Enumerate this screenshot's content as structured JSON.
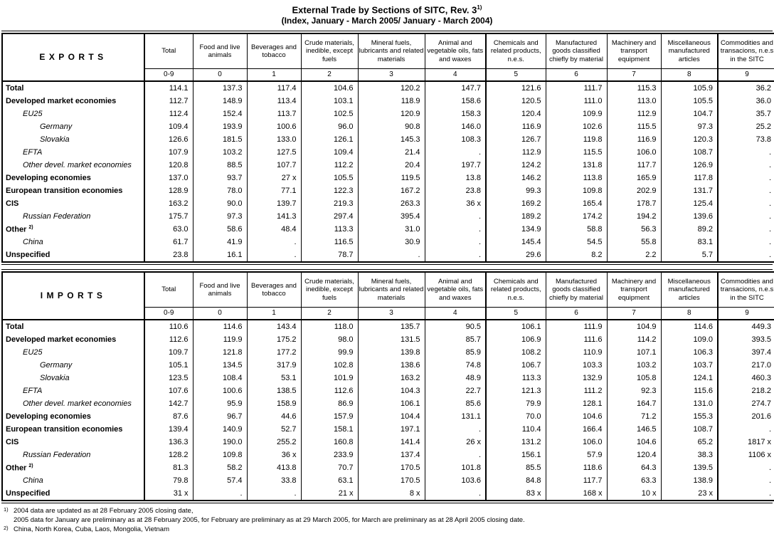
{
  "title": {
    "text": "External Trade by Sections of SITC, Rev. 3",
    "footnote_ref": "1)"
  },
  "subtitle": "(Index, January - March 2005/ January - March 2004)",
  "columns": {
    "labels": [
      "Total",
      "Food and live animals",
      "Beverages and tobacco",
      "Crude materials, inedible, except fuels",
      "Mineral fuels, lubricants and related materials",
      "Animal and vegetable oils, fats and waxes",
      "Chemicals and related products, n.e.s.",
      "Manufactured goods classified chiefly by material",
      "Machinery and transport equipment",
      "Miscellaneous manufactured articles",
      "Commodities and transacions, n.e.s in the SITC"
    ],
    "codes": [
      "0-9",
      "0",
      "1",
      "2",
      "3",
      "4",
      "5",
      "6",
      "7",
      "8",
      "9"
    ]
  },
  "tables": [
    {
      "title": "EXPORTS",
      "rows": [
        {
          "label": "Total",
          "sup": "",
          "style": "bold",
          "indent": 0,
          "values": [
            "114.1",
            "137.3",
            "117.4",
            "104.6",
            "120.2",
            "147.7",
            "121.6",
            "111.7",
            "115.3",
            "105.9",
            "36.2"
          ]
        },
        {
          "label": "Developed market economies",
          "sup": "",
          "style": "bold",
          "indent": 0,
          "values": [
            "112.7",
            "148.9",
            "113.4",
            "103.1",
            "118.9",
            "158.6",
            "120.5",
            "111.0",
            "113.0",
            "105.5",
            "36.0"
          ]
        },
        {
          "label": "EU25",
          "sup": "",
          "style": "italic",
          "indent": 1,
          "values": [
            "112.4",
            "152.4",
            "113.7",
            "102.5",
            "120.9",
            "158.3",
            "120.4",
            "109.9",
            "112.9",
            "104.7",
            "35.7"
          ]
        },
        {
          "label": "Germany",
          "sup": "",
          "style": "italic",
          "indent": 2,
          "values": [
            "109.4",
            "193.9",
            "100.6",
            "96.0",
            "90.8",
            "146.0",
            "116.9",
            "102.6",
            "115.5",
            "97.3",
            "25.2"
          ]
        },
        {
          "label": "Slovakia",
          "sup": "",
          "style": "italic",
          "indent": 2,
          "values": [
            "126.6",
            "181.5",
            "133.0",
            "126.1",
            "145.3",
            "108.3",
            "126.7",
            "119.8",
            "116.9",
            "120.3",
            "73.8"
          ]
        },
        {
          "label": "EFTA",
          "sup": "",
          "style": "italic",
          "indent": 1,
          "values": [
            "107.9",
            "103.2",
            "127.5",
            "109.4",
            "21.4",
            ".",
            "112.9",
            "115.5",
            "106.0",
            "108.7",
            "."
          ]
        },
        {
          "label": "Other devel. market economies",
          "sup": "",
          "style": "italic",
          "indent": 1,
          "values": [
            "120.8",
            "88.5",
            "107.7",
            "112.2",
            "20.4",
            "197.7",
            "124.2",
            "131.8",
            "117.7",
            "126.9",
            "."
          ]
        },
        {
          "label": "Developing economies",
          "sup": "",
          "style": "bold",
          "indent": 0,
          "values": [
            "137.0",
            "93.7",
            "27 x",
            "105.5",
            "119.5",
            "13.8",
            "146.2",
            "113.8",
            "165.9",
            "117.8",
            "."
          ]
        },
        {
          "label": "European transition economies",
          "sup": "",
          "style": "bold",
          "indent": 0,
          "values": [
            "128.9",
            "78.0",
            "77.1",
            "122.3",
            "167.2",
            "23.8",
            "99.3",
            "109.8",
            "202.9",
            "131.7",
            "."
          ]
        },
        {
          "label": "CIS",
          "sup": "",
          "style": "bold",
          "indent": 0,
          "values": [
            "163.2",
            "90.0",
            "139.7",
            "219.3",
            "263.3",
            "36 x",
            "169.2",
            "165.4",
            "178.7",
            "125.4",
            "."
          ]
        },
        {
          "label": "Russian Federation",
          "sup": "",
          "style": "italic",
          "indent": 1,
          "values": [
            "175.7",
            "97.3",
            "141.3",
            "297.4",
            "395.4",
            ".",
            "189.2",
            "174.2",
            "194.2",
            "139.6",
            "."
          ]
        },
        {
          "label": "Other",
          "sup": "2)",
          "style": "bold",
          "indent": 0,
          "values": [
            "63.0",
            "58.6",
            "48.4",
            "113.3",
            "31.0",
            ".",
            "134.9",
            "58.8",
            "56.3",
            "89.2",
            "."
          ]
        },
        {
          "label": "China",
          "sup": "",
          "style": "italic",
          "indent": 1,
          "values": [
            "61.7",
            "41.9",
            ".",
            "116.5",
            "30.9",
            ".",
            "145.4",
            "54.5",
            "55.8",
            "83.1",
            "."
          ]
        },
        {
          "label": "Unspecified",
          "sup": "",
          "style": "bold",
          "indent": 0,
          "values": [
            "23.8",
            "16.1",
            ".",
            "78.7",
            ".",
            ".",
            "29.6",
            "8.2",
            "2.2",
            "5.7",
            "."
          ]
        }
      ]
    },
    {
      "title": "IMPORTS",
      "rows": [
        {
          "label": "Total",
          "sup": "",
          "style": "bold",
          "indent": 0,
          "values": [
            "110.6",
            "114.6",
            "143.4",
            "118.0",
            "135.7",
            "90.5",
            "106.1",
            "111.9",
            "104.9",
            "114.6",
            "449.3"
          ]
        },
        {
          "label": "Developed market economies",
          "sup": "",
          "style": "bold",
          "indent": 0,
          "values": [
            "112.6",
            "119.9",
            "175.2",
            "98.0",
            "131.5",
            "85.7",
            "106.9",
            "111.6",
            "114.2",
            "109.0",
            "393.5"
          ]
        },
        {
          "label": "EU25",
          "sup": "",
          "style": "italic",
          "indent": 1,
          "values": [
            "109.7",
            "121.8",
            "177.2",
            "99.9",
            "139.8",
            "85.9",
            "108.2",
            "110.9",
            "107.1",
            "106.3",
            "397.4"
          ]
        },
        {
          "label": "Germany",
          "sup": "",
          "style": "italic",
          "indent": 2,
          "values": [
            "105.1",
            "134.5",
            "317.9",
            "102.8",
            "138.6",
            "74.8",
            "106.7",
            "103.3",
            "103.2",
            "103.7",
            "217.0"
          ]
        },
        {
          "label": "Slovakia",
          "sup": "",
          "style": "italic",
          "indent": 2,
          "values": [
            "123.5",
            "108.4",
            "53.1",
            "101.9",
            "163.2",
            "48.9",
            "113.3",
            "132.9",
            "105.8",
            "124.1",
            "460.3"
          ]
        },
        {
          "label": "EFTA",
          "sup": "",
          "style": "italic",
          "indent": 1,
          "values": [
            "107.6",
            "100.6",
            "138.5",
            "112.6",
            "104.3",
            "22.7",
            "121.3",
            "111.2",
            "92.3",
            "115.6",
            "218.2"
          ]
        },
        {
          "label": "Other devel. market economies",
          "sup": "",
          "style": "italic",
          "indent": 1,
          "values": [
            "142.7",
            "95.9",
            "158.9",
            "86.9",
            "106.1",
            "85.6",
            "79.9",
            "128.1",
            "164.7",
            "131.0",
            "274.7"
          ]
        },
        {
          "label": "Developing economies",
          "sup": "",
          "style": "bold",
          "indent": 0,
          "values": [
            "87.6",
            "96.7",
            "44.6",
            "157.9",
            "104.4",
            "131.1",
            "70.0",
            "104.6",
            "71.2",
            "155.3",
            "201.6"
          ]
        },
        {
          "label": "European transition economies",
          "sup": "",
          "style": "bold",
          "indent": 0,
          "values": [
            "139.4",
            "140.9",
            "52.7",
            "158.1",
            "197.1",
            ".",
            "110.4",
            "166.4",
            "146.5",
            "108.7",
            "."
          ]
        },
        {
          "label": "CIS",
          "sup": "",
          "style": "bold",
          "indent": 0,
          "values": [
            "136.3",
            "190.0",
            "255.2",
            "160.8",
            "141.4",
            "26 x",
            "131.2",
            "106.0",
            "104.6",
            "65.2",
            "1817 x"
          ]
        },
        {
          "label": "Russian Federation",
          "sup": "",
          "style": "italic",
          "indent": 1,
          "values": [
            "128.2",
            "109.8",
            "36 x",
            "233.9",
            "137.4",
            ".",
            "156.1",
            "57.9",
            "120.4",
            "38.3",
            "1106 x"
          ]
        },
        {
          "label": "Other",
          "sup": "2)",
          "style": "bold",
          "indent": 0,
          "values": [
            "81.3",
            "58.2",
            "413.8",
            "70.7",
            "170.5",
            "101.8",
            "85.5",
            "118.6",
            "64.3",
            "139.5",
            "."
          ]
        },
        {
          "label": "China",
          "sup": "",
          "style": "italic",
          "indent": 1,
          "values": [
            "79.8",
            "57.4",
            "33.8",
            "63.1",
            "170.5",
            "103.6",
            "84.8",
            "117.7",
            "63.3",
            "138.9",
            "."
          ]
        },
        {
          "label": "Unspecified",
          "sup": "",
          "style": "bold",
          "indent": 0,
          "values": [
            "31 x",
            ".",
            ".",
            "21 x",
            "8 x",
            ".",
            "83 x",
            "168 x",
            "10 x",
            "23 x",
            "."
          ]
        }
      ]
    }
  ],
  "footnotes": [
    {
      "marker": "1)",
      "text": "2004 data are updated as at 28 February 2005 closing date,"
    },
    {
      "marker": "",
      "text": "2005 data for January are preliminary as at 28 February 2005, for February are preliminary as at 29 March 2005, for March are preliminary as at 28 April 2005 closing date."
    },
    {
      "marker": "2)",
      "text": "China, North Korea, Cuba, Laos, Mongolia, Vietnam"
    }
  ]
}
